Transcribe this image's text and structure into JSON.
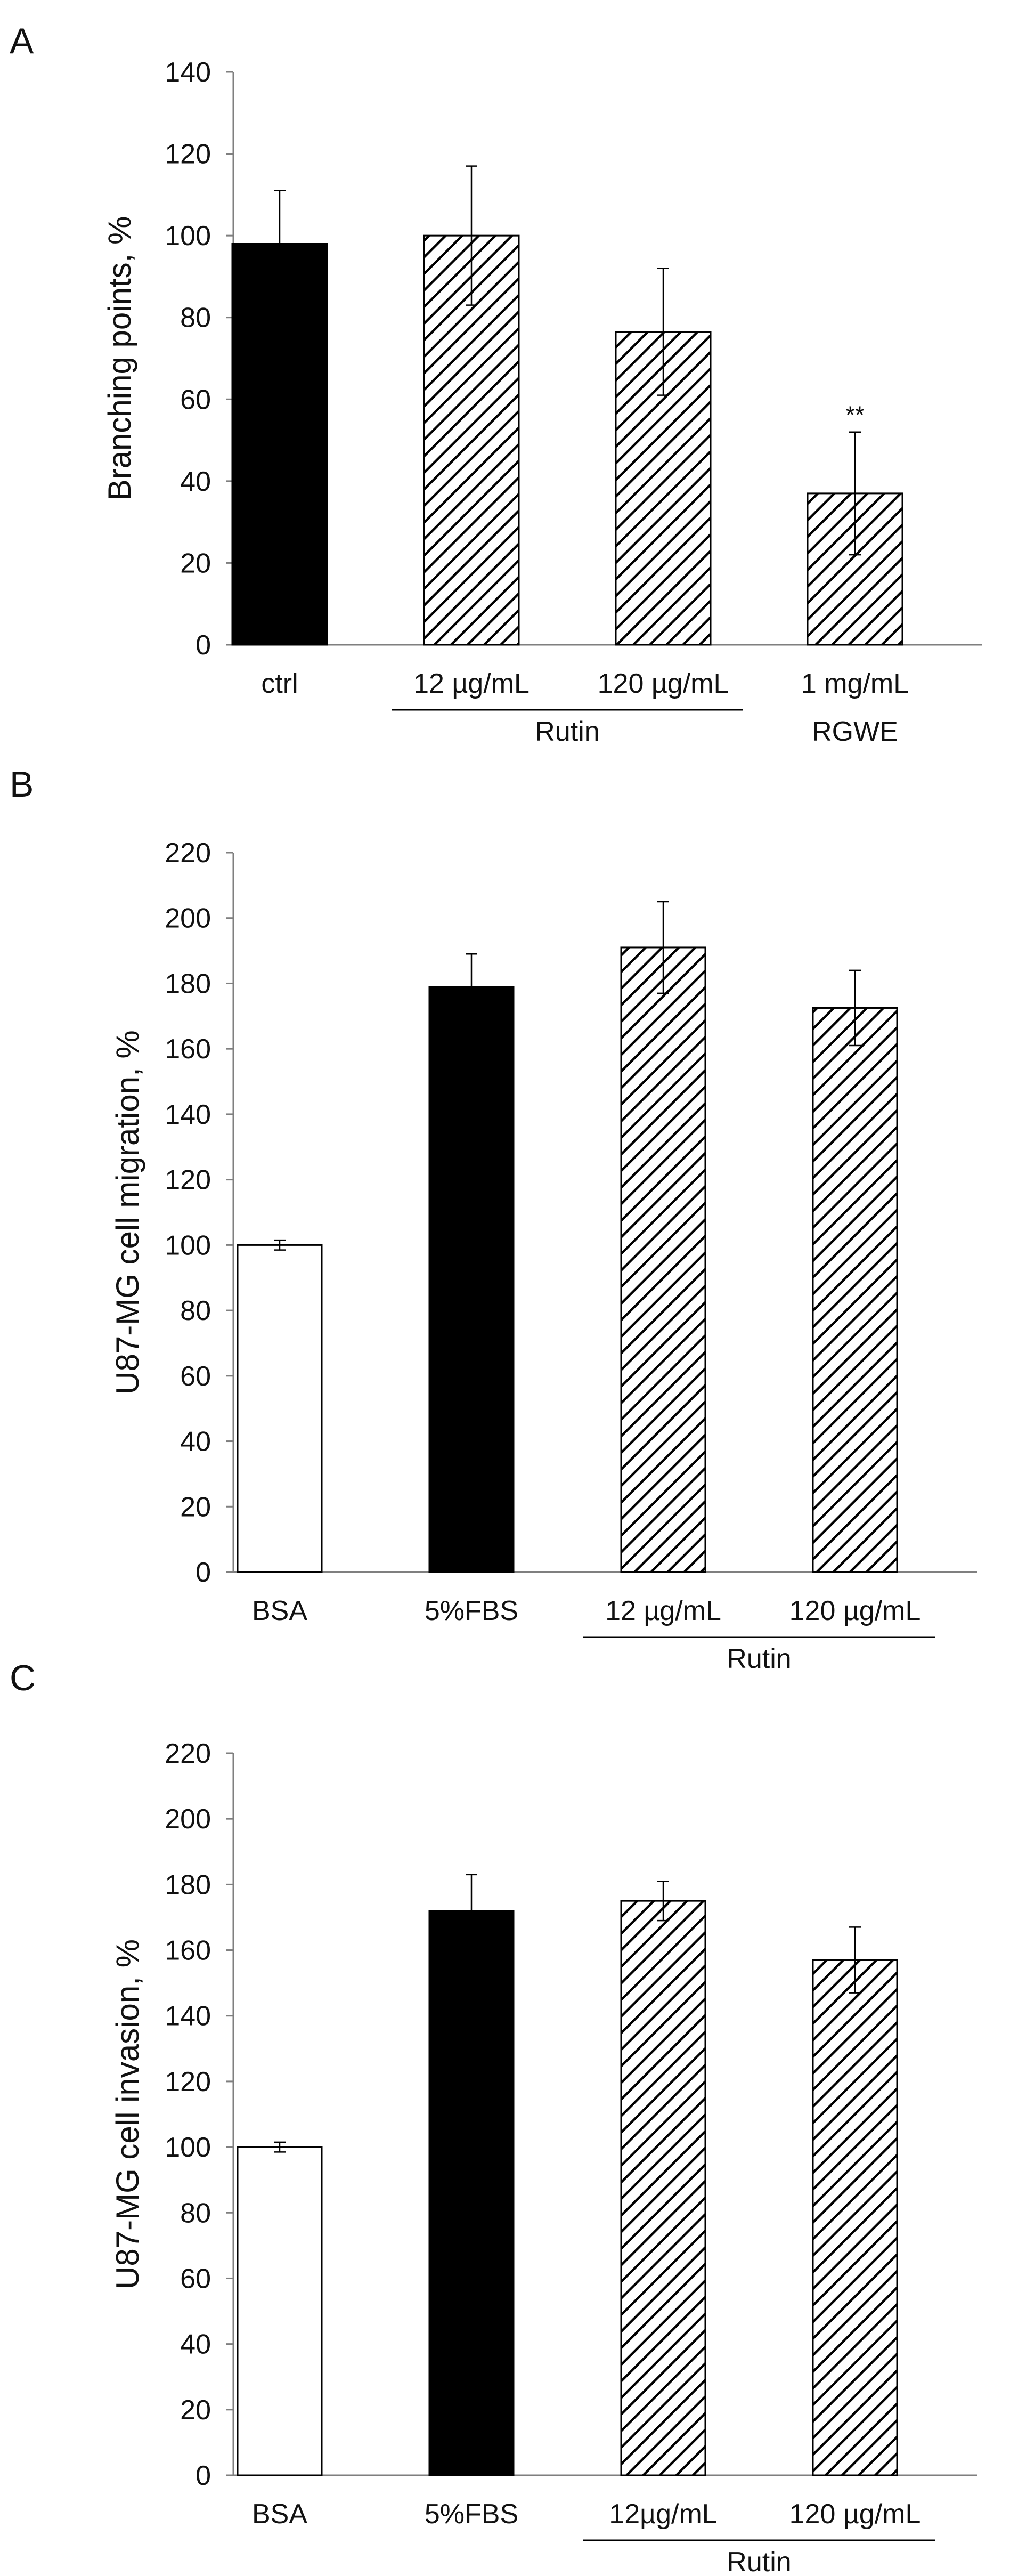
{
  "colors": {
    "solid": "#000000",
    "open": "#ffffff",
    "hatch": "#000000"
  },
  "chart_data": [
    {
      "type": "bar",
      "panel": "A",
      "ylabel": "Branching points, %",
      "ylim": [
        0,
        140
      ],
      "yticks": [
        0,
        20,
        40,
        60,
        80,
        100,
        120,
        140
      ],
      "categories": [
        "ctrl",
        "12 µg/mL",
        "120 µg/mL",
        "1 mg/mL"
      ],
      "values": [
        98,
        100,
        76.5,
        37
      ],
      "errors": [
        13,
        17,
        15.5,
        15
      ],
      "fills": [
        "solid",
        "hatch",
        "hatch",
        "hatch"
      ],
      "annotations": [
        {
          "category": "1 mg/mL",
          "text": "**"
        }
      ],
      "groups": [
        {
          "label": "Rutin",
          "from": 1,
          "to": 2,
          "line": true
        },
        {
          "label": "RGWE",
          "from": 3,
          "to": 3,
          "line": false
        }
      ]
    },
    {
      "type": "bar",
      "panel": "B",
      "ylabel": "U87-MG cell migration, %",
      "ylim": [
        0,
        220
      ],
      "yticks": [
        0,
        20,
        40,
        60,
        80,
        100,
        120,
        140,
        160,
        180,
        200,
        220
      ],
      "categories": [
        "BSA",
        "5%FBS",
        "12 µg/mL",
        "120 µg/mL"
      ],
      "values": [
        100,
        179,
        191,
        172.5
      ],
      "errors": [
        1.5,
        10,
        14,
        11.5
      ],
      "fills": [
        "open",
        "solid",
        "hatch",
        "hatch"
      ],
      "annotations": [],
      "groups": [
        {
          "label": "Rutin",
          "from": 2,
          "to": 3,
          "line": true
        }
      ]
    },
    {
      "type": "bar",
      "panel": "C",
      "ylabel": "U87-MG cell invasion, %",
      "ylim": [
        0,
        220
      ],
      "yticks": [
        0,
        20,
        40,
        60,
        80,
        100,
        120,
        140,
        160,
        180,
        200,
        220
      ],
      "categories": [
        "BSA",
        "5%FBS",
        "12µg/mL",
        "120 µg/mL"
      ],
      "values": [
        100,
        172,
        175,
        157
      ],
      "errors": [
        1.5,
        11,
        6,
        10
      ],
      "fills": [
        "open",
        "solid",
        "hatch",
        "hatch"
      ],
      "annotations": [],
      "groups": [
        {
          "label": "Rutin",
          "from": 2,
          "to": 3,
          "line": true
        }
      ]
    }
  ]
}
